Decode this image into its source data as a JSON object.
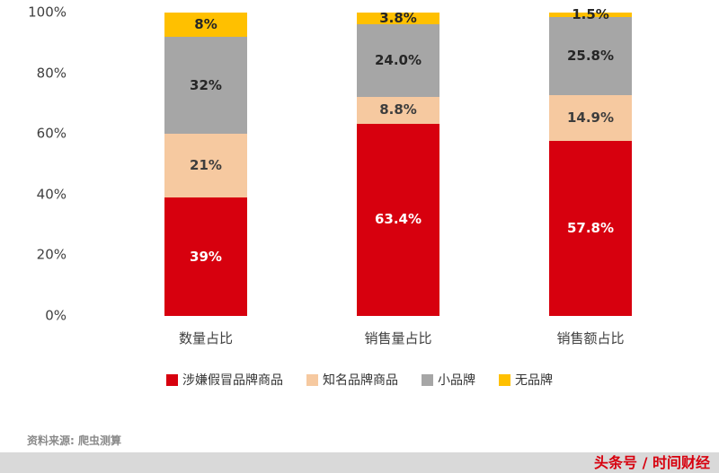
{
  "chart_data": {
    "type": "bar",
    "subtype": "stacked-100",
    "categories": [
      "数量占比",
      "销售量占比",
      "销售额占比"
    ],
    "series": [
      {
        "name": "涉嫌假冒品牌商品",
        "color": "#d7000e",
        "values": [
          39,
          63.4,
          57.8
        ],
        "labels": [
          "39%",
          "63.4%",
          "57.8%"
        ],
        "label_color": "#ffffff"
      },
      {
        "name": "知名品牌商品",
        "color": "#f6c9a0",
        "values": [
          21,
          8.8,
          14.9
        ],
        "labels": [
          "21%",
          "8.8%",
          "14.9%"
        ],
        "label_color": "#3d3d3d"
      },
      {
        "name": "小品牌",
        "color": "#a6a6a6",
        "values": [
          32,
          24.0,
          25.8
        ],
        "labels": [
          "32%",
          "24.0%",
          "25.8%"
        ],
        "label_color": "#262626"
      },
      {
        "name": "无品牌",
        "color": "#ffc000",
        "values": [
          8,
          3.8,
          1.5
        ],
        "labels": [
          "8%",
          "3.8%",
          "1.5%"
        ],
        "label_color": "#262626"
      }
    ],
    "y_ticks": [
      {
        "label": "0%",
        "value": 0
      },
      {
        "label": "20%",
        "value": 20
      },
      {
        "label": "40%",
        "value": 40
      },
      {
        "label": "60%",
        "value": 60
      },
      {
        "label": "80%",
        "value": 80
      },
      {
        "label": "100%",
        "value": 100
      }
    ],
    "ylim": [
      0,
      100
    ],
    "title": "",
    "xlabel": "",
    "ylabel": "",
    "grid": false,
    "legend_position": "bottom"
  },
  "footer": {
    "source": "资料来源: 爬虫测算",
    "watermark": "头条号 / 时间财经"
  }
}
